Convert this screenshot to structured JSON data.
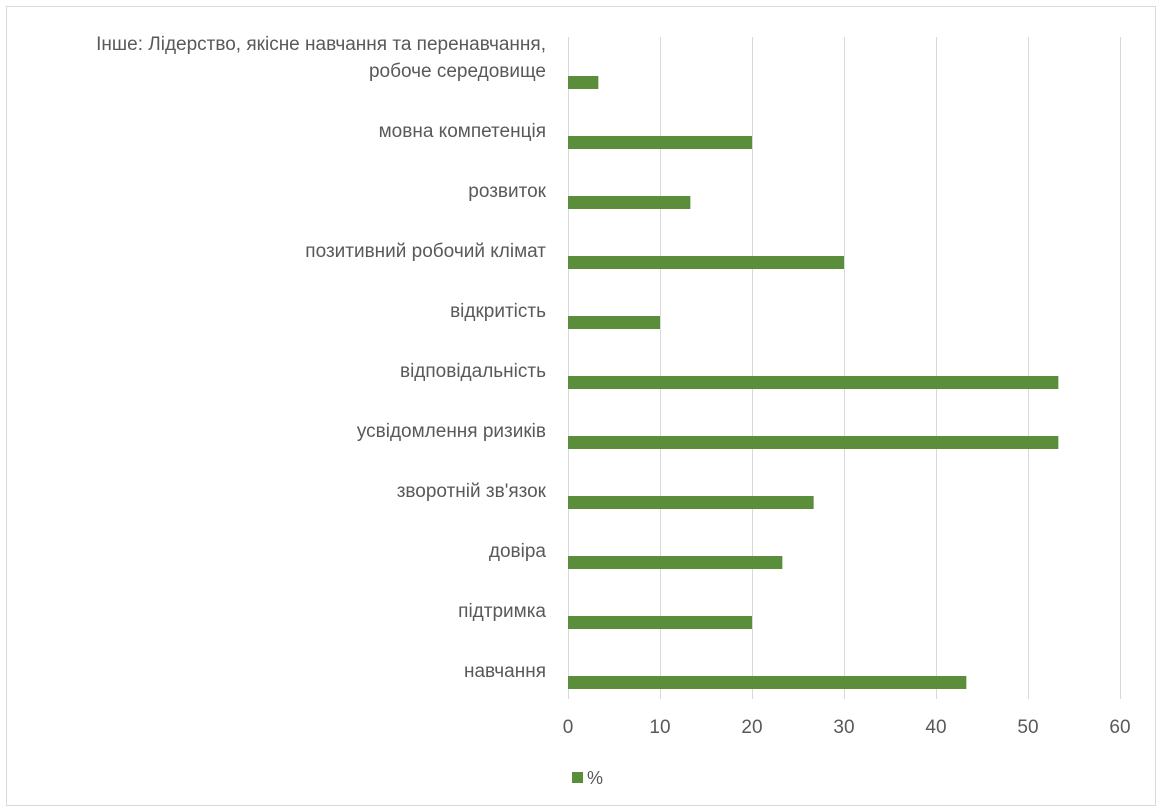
{
  "chart_data": {
    "type": "bar",
    "orientation": "horizontal",
    "categories": [
      "навчання",
      "підтримка",
      "довіра",
      "зворотній зв'язок",
      "усвідомлення ризиків",
      "відповідальність",
      "відкритість",
      "позитивний робочий клімат",
      "розвиток",
      "мовна компетенція",
      "Інше: Лідерство, якісне навчання та перенавчання, робоче середовище"
    ],
    "category_lines": [
      [
        "навчання"
      ],
      [
        "підтримка"
      ],
      [
        "довіра"
      ],
      [
        "зворотній зв'язок"
      ],
      [
        "усвідомлення ризиків"
      ],
      [
        "відповідальність"
      ],
      [
        "відкритість"
      ],
      [
        "позитивний робочий клімат"
      ],
      [
        "розвиток"
      ],
      [
        "мовна компетенція"
      ],
      [
        "Інше: Лідерство, якісне навчання та перенавчання,",
        "робоче середовище"
      ]
    ],
    "series": [
      {
        "name": "%",
        "color": "#5b8e3b",
        "values": [
          43.3,
          20,
          23.3,
          26.7,
          53.3,
          53.3,
          10,
          30,
          13.3,
          20,
          3.3
        ]
      }
    ],
    "xlim": [
      0,
      60
    ],
    "xticks": [
      0,
      10,
      20,
      30,
      40,
      50,
      60
    ],
    "title": "",
    "xlabel": "",
    "ylabel": "",
    "grid": "vertical",
    "legend": "bottom-left"
  },
  "colors": {
    "bar": "#5b8e3b",
    "grid": "#d9d9d9",
    "text": "#595959"
  }
}
